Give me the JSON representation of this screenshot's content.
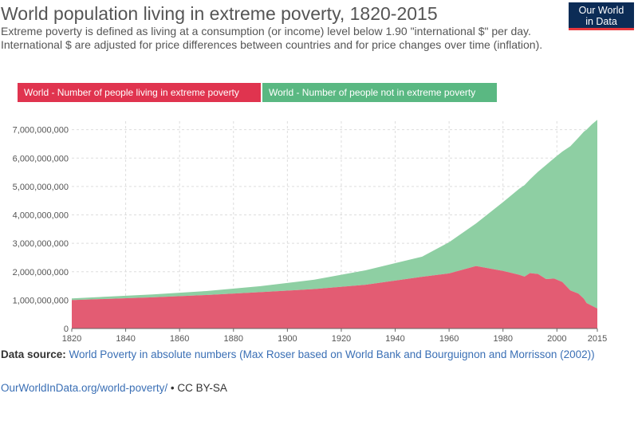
{
  "header": {
    "title": "World population living in extreme poverty, 1820-2015",
    "subtitle": "Extreme poverty is defined as living at a consumption (or income) level below 1.90 \"international $\" per day. International $ are adjusted for price differences between countries and for price changes over time (inflation).",
    "logo_line1": "Our World",
    "logo_line2": "in Data"
  },
  "legend": {
    "poverty": "World - Number of people living in extreme poverty",
    "not_poverty": "World - Number of people not in extreme poverty"
  },
  "footer": {
    "source_label": "Data source:",
    "source_text": "World Poverty in absolute numbers (Max Roser based on World Bank and Bourguignon and Morrisson (2002))",
    "link_text": "OurWorldInData.org/world-poverty/",
    "license": "• CC BY-SA"
  },
  "colors": {
    "poverty": "#e0344f",
    "not_poverty": "#5ab882",
    "poverty_fill": "#e35c73",
    "not_poverty_fill": "#8ecfa3"
  },
  "chart_data": {
    "type": "area",
    "stacked": true,
    "title": "World population living in extreme poverty, 1820-2015",
    "xlim": [
      1820,
      2015
    ],
    "ylim": [
      0,
      7300000000
    ],
    "x_ticks": [
      1820,
      1840,
      1860,
      1880,
      1900,
      1920,
      1940,
      1960,
      1980,
      2000,
      2015
    ],
    "y_ticks": [
      0,
      1000000000,
      2000000000,
      3000000000,
      4000000000,
      5000000000,
      6000000000,
      7000000000
    ],
    "y_tick_labels": [
      "0",
      "1,000,000,000",
      "2,000,000,000",
      "3,000,000,000",
      "4,000,000,000",
      "5,000,000,000",
      "6,000,000,000",
      "7,000,000,000"
    ],
    "grid": true,
    "series": [
      {
        "name": "World - Number of people living in extreme poverty",
        "x": [
          1820,
          1850,
          1870,
          1890,
          1910,
          1929,
          1950,
          1960,
          1970,
          1980,
          1986,
          1988,
          1990,
          1993,
          1996,
          1999,
          2002,
          2005,
          2008,
          2010,
          2011,
          2013,
          2015
        ],
        "values": [
          1000000000,
          1100000000,
          1180000000,
          1280000000,
          1390000000,
          1540000000,
          1820000000,
          1940000000,
          2200000000,
          2030000000,
          1890000000,
          1830000000,
          1950000000,
          1920000000,
          1740000000,
          1760000000,
          1640000000,
          1340000000,
          1230000000,
          1050000000,
          900000000,
          800000000,
          705000000
        ]
      },
      {
        "name": "World - Number of people not in extreme poverty",
        "x": [
          1820,
          1850,
          1870,
          1890,
          1910,
          1929,
          1950,
          1960,
          1970,
          1980,
          1986,
          1988,
          1990,
          1993,
          1996,
          1999,
          2002,
          2005,
          2008,
          2010,
          2011,
          2013,
          2015
        ],
        "values": [
          60000000,
          100000000,
          140000000,
          210000000,
          330000000,
          510000000,
          710000000,
          1100000000,
          1500000000,
          2420000000,
          3030000000,
          3220000000,
          3300000000,
          3600000000,
          4020000000,
          4240000000,
          4590000000,
          5080000000,
          5490000000,
          5880000000,
          6100000000,
          6390000000,
          6645000000
        ]
      }
    ]
  }
}
